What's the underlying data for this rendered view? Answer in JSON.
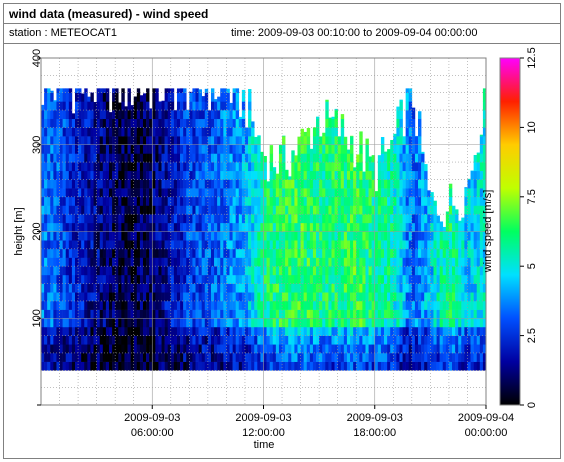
{
  "title": "wind data (measured) - wind speed",
  "station": "station : METEOCAT1",
  "time_range": "time: 2009-09-03 00:10:00 to 2009-09-04 00:00:00",
  "chart_data": {
    "type": "heatmap",
    "xlabel": "time",
    "ylabel": "height [m]",
    "colorbar_label": "wind speed [m/s]",
    "x_ticks": [
      {
        "hour": 6,
        "line1": "2009-09-03",
        "line2": "06:00:00"
      },
      {
        "hour": 12,
        "line1": "2009-09-03",
        "line2": "12:00:00"
      },
      {
        "hour": 18,
        "line1": "2009-09-03",
        "line2": "18:00:00"
      },
      {
        "hour": 24,
        "line1": "2009-09-04",
        "line2": "00:00:00"
      }
    ],
    "xlim_hours": [
      0,
      24
    ],
    "ylim": [
      0,
      400
    ],
    "y_ticks": [
      100,
      200,
      300,
      400
    ],
    "clim": [
      0,
      12.5
    ],
    "c_ticks": [
      "0",
      "2.5",
      "5",
      "7.5",
      "10",
      "12.5"
    ],
    "height_range_m": [
      40,
      365
    ],
    "colormap": [
      "#000000",
      "#0000a0",
      "#0050ff",
      "#00e0ff",
      "#00ff60",
      "#c0ff00",
      "#ffcc00",
      "#ff2000",
      "#ff00ff"
    ],
    "profiles": [
      {
        "hour": 0.0,
        "speed": 3.5,
        "top": 365
      },
      {
        "hour": 1.0,
        "speed": 3.0,
        "top": 365
      },
      {
        "hour": 2.0,
        "speed": 2.2,
        "top": 365
      },
      {
        "hour": 3.0,
        "speed": 1.5,
        "top": 365
      },
      {
        "hour": 4.0,
        "speed": 0.9,
        "top": 365
      },
      {
        "hour": 5.0,
        "speed": 0.6,
        "top": 365
      },
      {
        "hour": 6.0,
        "speed": 1.0,
        "top": 365
      },
      {
        "hour": 7.0,
        "speed": 2.0,
        "top": 365
      },
      {
        "hour": 8.0,
        "speed": 2.8,
        "top": 365
      },
      {
        "hour": 9.0,
        "speed": 3.0,
        "top": 365
      },
      {
        "hour": 10.0,
        "speed": 3.5,
        "top": 365
      },
      {
        "hour": 11.0,
        "speed": 4.0,
        "top": 350
      },
      {
        "hour": 12.0,
        "speed": 5.8,
        "top": 290
      },
      {
        "hour": 13.0,
        "speed": 6.2,
        "top": 280
      },
      {
        "hour": 14.0,
        "speed": 6.5,
        "top": 300
      },
      {
        "hour": 15.0,
        "speed": 6.0,
        "top": 330
      },
      {
        "hour": 16.0,
        "speed": 6.0,
        "top": 320
      },
      {
        "hour": 17.0,
        "speed": 6.5,
        "top": 300
      },
      {
        "hour": 18.0,
        "speed": 5.8,
        "top": 270
      },
      {
        "hour": 19.0,
        "speed": 5.5,
        "top": 300
      },
      {
        "hour": 20.0,
        "speed": 3.2,
        "top": 365
      },
      {
        "hour": 21.0,
        "speed": 4.5,
        "top": 230
      },
      {
        "hour": 22.0,
        "speed": 6.0,
        "top": 230
      },
      {
        "hour": 23.0,
        "speed": 4.5,
        "top": 250
      },
      {
        "hour": 24.0,
        "speed": 5.0,
        "top": 365
      }
    ]
  }
}
